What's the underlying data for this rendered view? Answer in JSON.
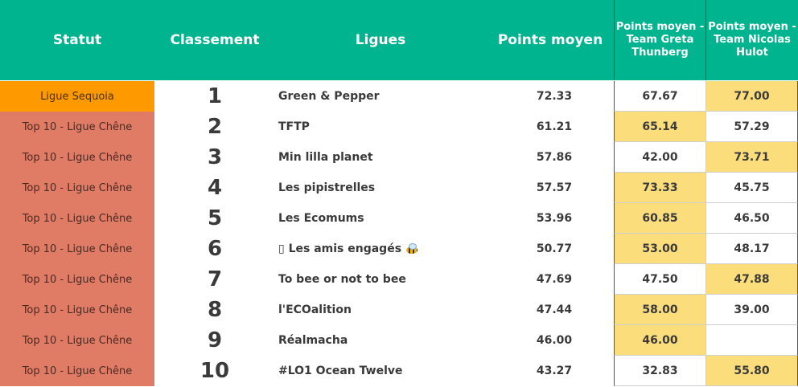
{
  "headers": {
    "statut": "Statut",
    "classement": "Classement",
    "ligues": "Ligues",
    "points_moyen": "Points moyen",
    "greta": "Points moyen - Team Greta Thunberg",
    "hulot": "Points moyen - Team Nicolas Hulot"
  },
  "colors": {
    "header_bg": "#00b48f",
    "sequoia": "#ff9900",
    "chene": "#e07b66",
    "highlight": "#fcdd7c"
  },
  "rows": [
    {
      "statut": "Ligue Sequoia",
      "rank": "1",
      "league": "Green & Pepper",
      "avg": "72.33",
      "greta": "67.67",
      "hulot": "77.00"
    },
    {
      "statut": "Top 10 - Ligue Chêne",
      "rank": "2",
      "league": "TFTP",
      "avg": "61.21",
      "greta": "65.14",
      "hulot": "57.29"
    },
    {
      "statut": "Top 10 - Ligue Chêne",
      "rank": "3",
      "league": "Min lilla planet",
      "avg": "57.86",
      "greta": "42.00",
      "hulot": "73.71"
    },
    {
      "statut": "Top 10 - Ligue Chêne",
      "rank": "4",
      "league": "Les pipistrelles",
      "avg": "57.57",
      "greta": "73.33",
      "hulot": "45.75"
    },
    {
      "statut": "Top 10 - Ligue Chêne",
      "rank": "5",
      "league": "Les Ecomums",
      "avg": "53.96",
      "greta": "60.85",
      "hulot": "46.50"
    },
    {
      "statut": "Top 10 - Ligue Chêne",
      "rank": "6",
      "league": "▯ Les amis engagés",
      "avg": "50.77",
      "greta": "53.00",
      "hulot": "48.17"
    },
    {
      "statut": "Top 10 - Ligue Chêne",
      "rank": "7",
      "league": "To bee or not to bee",
      "avg": "47.69",
      "greta": "47.50",
      "hulot": "47.88"
    },
    {
      "statut": "Top 10 - Ligue Chêne",
      "rank": "8",
      "league": "l'ECOalition",
      "avg": "47.44",
      "greta": "58.00",
      "hulot": "39.00"
    },
    {
      "statut": "Top 10 - Ligue Chêne",
      "rank": "9",
      "league": "Réalmacha",
      "avg": "46.00",
      "greta": "46.00",
      "hulot": ""
    },
    {
      "statut": "Top 10 - Ligue Chêne",
      "rank": "10",
      "league": "#LO1 Ocean Twelve",
      "avg": "43.27",
      "greta": "32.83",
      "hulot": "55.80"
    }
  ]
}
